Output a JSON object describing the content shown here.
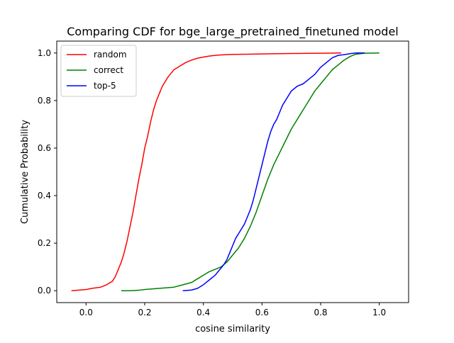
{
  "chart_data": {
    "type": "line",
    "title": "Comparing CDF for bge_large_pretrained_finetuned model",
    "xlabel": "cosine similarity",
    "ylabel": "Cumulative Probability",
    "xlim": [
      -0.1,
      1.1
    ],
    "ylim": [
      -0.05,
      1.05
    ],
    "xticks": [
      0.0,
      0.2,
      0.4,
      0.6,
      0.8,
      1.0
    ],
    "xtick_labels": [
      "0.0",
      "0.2",
      "0.4",
      "0.6",
      "0.8",
      "1.0"
    ],
    "yticks": [
      0.0,
      0.2,
      0.4,
      0.6,
      0.8,
      1.0
    ],
    "ytick_labels": [
      "0.0",
      "0.2",
      "0.4",
      "0.6",
      "0.8",
      "1.0"
    ],
    "grid": false,
    "legend_position": "top-left",
    "series": [
      {
        "name": "random",
        "color": "#ff0000",
        "x": [
          -0.05,
          0.0,
          0.02,
          0.05,
          0.07,
          0.09,
          0.1,
          0.11,
          0.12,
          0.13,
          0.14,
          0.15,
          0.16,
          0.17,
          0.18,
          0.19,
          0.2,
          0.21,
          0.22,
          0.23,
          0.24,
          0.25,
          0.26,
          0.27,
          0.28,
          0.29,
          0.3,
          0.32,
          0.34,
          0.36,
          0.38,
          0.4,
          0.42,
          0.44,
          0.46,
          0.5,
          0.55,
          0.6,
          0.65,
          0.7,
          0.8,
          0.87
        ],
        "y": [
          0.0,
          0.005,
          0.01,
          0.015,
          0.025,
          0.04,
          0.06,
          0.09,
          0.12,
          0.16,
          0.21,
          0.27,
          0.33,
          0.4,
          0.47,
          0.53,
          0.6,
          0.65,
          0.71,
          0.76,
          0.8,
          0.83,
          0.86,
          0.88,
          0.9,
          0.915,
          0.93,
          0.945,
          0.96,
          0.97,
          0.978,
          0.983,
          0.987,
          0.99,
          0.992,
          0.994,
          0.995,
          0.996,
          0.997,
          0.998,
          0.999,
          1.0
        ]
      },
      {
        "name": "correct",
        "color": "#008000",
        "x": [
          0.12,
          0.15,
          0.18,
          0.2,
          0.25,
          0.3,
          0.33,
          0.36,
          0.38,
          0.4,
          0.42,
          0.44,
          0.46,
          0.48,
          0.5,
          0.52,
          0.54,
          0.56,
          0.58,
          0.6,
          0.62,
          0.64,
          0.66,
          0.68,
          0.7,
          0.72,
          0.74,
          0.76,
          0.78,
          0.8,
          0.82,
          0.84,
          0.86,
          0.88,
          0.9,
          0.92,
          0.95,
          1.0
        ],
        "y": [
          0.0,
          0.0,
          0.002,
          0.005,
          0.01,
          0.015,
          0.025,
          0.035,
          0.05,
          0.065,
          0.08,
          0.09,
          0.1,
          0.12,
          0.15,
          0.18,
          0.22,
          0.27,
          0.33,
          0.4,
          0.47,
          0.53,
          0.58,
          0.63,
          0.68,
          0.72,
          0.76,
          0.8,
          0.84,
          0.87,
          0.9,
          0.93,
          0.95,
          0.97,
          0.985,
          0.995,
          0.999,
          1.0
        ]
      },
      {
        "name": "top-5",
        "color": "#0000ff",
        "x": [
          0.33,
          0.36,
          0.38,
          0.4,
          0.42,
          0.44,
          0.45,
          0.46,
          0.47,
          0.48,
          0.49,
          0.5,
          0.51,
          0.52,
          0.53,
          0.54,
          0.55,
          0.56,
          0.57,
          0.58,
          0.59,
          0.6,
          0.61,
          0.62,
          0.63,
          0.64,
          0.65,
          0.66,
          0.67,
          0.68,
          0.7,
          0.72,
          0.74,
          0.76,
          0.78,
          0.8,
          0.82,
          0.84,
          0.86,
          0.88,
          0.9,
          0.92,
          0.95
        ],
        "y": [
          0.0,
          0.003,
          0.01,
          0.025,
          0.045,
          0.065,
          0.08,
          0.095,
          0.11,
          0.13,
          0.16,
          0.19,
          0.22,
          0.24,
          0.26,
          0.28,
          0.31,
          0.34,
          0.38,
          0.43,
          0.48,
          0.53,
          0.58,
          0.63,
          0.67,
          0.7,
          0.72,
          0.75,
          0.78,
          0.8,
          0.84,
          0.86,
          0.87,
          0.89,
          0.91,
          0.94,
          0.96,
          0.98,
          0.99,
          0.993,
          0.997,
          1.0,
          1.0
        ]
      }
    ]
  }
}
